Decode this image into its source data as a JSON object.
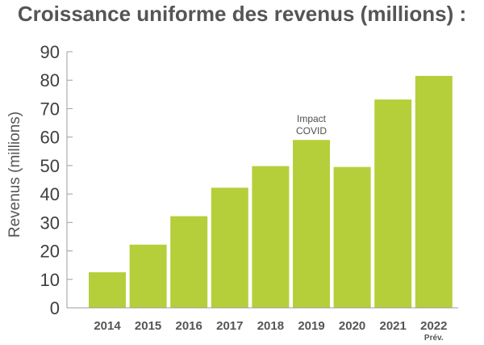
{
  "chart_data": {
    "type": "bar",
    "title": "Croissance uniforme des revenus (millions) :",
    "ylabel": "Revenus (millions)",
    "xlabel": "",
    "categories": [
      "2014",
      "2015",
      "2016",
      "2017",
      "2018",
      "2019",
      "2020",
      "2021",
      "2022"
    ],
    "category_sublabels": [
      "",
      "",
      "",
      "",
      "",
      "",
      "",
      "",
      "Prév."
    ],
    "values": [
      12.5,
      22.2,
      32.2,
      42.2,
      49.8,
      59.0,
      49.5,
      73.2,
      81.5
    ],
    "ylim": [
      0,
      90
    ],
    "yticks": [
      0,
      10,
      20,
      30,
      40,
      50,
      60,
      70,
      80,
      90
    ],
    "bar_color": "#b5cf3a",
    "axis_color": "#9e9e9e",
    "annotations": [
      {
        "category": "2019",
        "lines": [
          "Impact",
          "COVID"
        ]
      }
    ],
    "grid": false,
    "legend": "none"
  }
}
